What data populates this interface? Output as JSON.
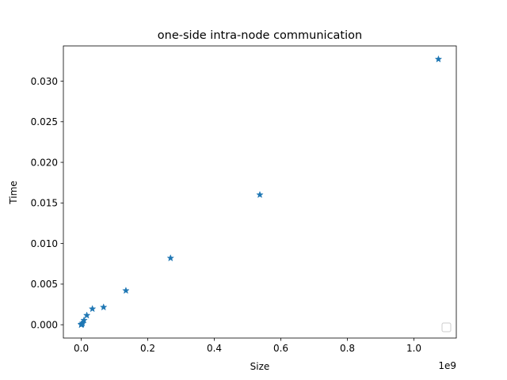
{
  "chart_data": {
    "type": "scatter",
    "title": "one-side intra-node communication",
    "xlabel": "Size",
    "ylabel": "Time",
    "x_offset_text": "1e9",
    "x_scale": 1000000000,
    "xlim": [
      -0.0537,
      1.1274
    ],
    "ylim": [
      -0.00164,
      0.03434
    ],
    "xticks": [
      0.0,
      0.2,
      0.4,
      0.6,
      0.8,
      1.0
    ],
    "xtick_labels": [
      "0.0",
      "0.2",
      "0.4",
      "0.6",
      "0.8",
      "1.0"
    ],
    "yticks": [
      0.0,
      0.005,
      0.01,
      0.015,
      0.02,
      0.025,
      0.03
    ],
    "ytick_labels": [
      "0.000",
      "0.005",
      "0.010",
      "0.015",
      "0.020",
      "0.025",
      "0.030"
    ],
    "grid": false,
    "legend": "lower right (empty)",
    "marker": "star",
    "color": "#1f77b4",
    "points": [
      {
        "x": 1e-06,
        "y": 1e-05
      },
      {
        "x": 2e-06,
        "y": 1e-05
      },
      {
        "x": 4e-06,
        "y": 1e-05
      },
      {
        "x": 8e-06,
        "y": 1e-05
      },
      {
        "x": 1.6e-05,
        "y": 1e-05
      },
      {
        "x": 3.3e-05,
        "y": 1e-05
      },
      {
        "x": 6.6e-05,
        "y": 1e-05
      },
      {
        "x": 0.000131,
        "y": 2e-05
      },
      {
        "x": 0.000262,
        "y": 2e-05
      },
      {
        "x": 0.000524,
        "y": 3e-05
      },
      {
        "x": 0.001049,
        "y": 4e-05
      },
      {
        "x": 0.002097,
        "y": 8e-05
      },
      {
        "x": 0.004194,
        "y": 0.0002
      },
      {
        "x": 0.008389,
        "y": 0.00055
      },
      {
        "x": 0.016777,
        "y": 0.00115
      },
      {
        "x": 0.033554,
        "y": 0.00195
      },
      {
        "x": 0.067109,
        "y": 0.00215
      },
      {
        "x": 0.134218,
        "y": 0.0042
      },
      {
        "x": 0.268435,
        "y": 0.0082
      },
      {
        "x": 0.536871,
        "y": 0.016
      },
      {
        "x": 1.073742,
        "y": 0.0327
      }
    ]
  }
}
